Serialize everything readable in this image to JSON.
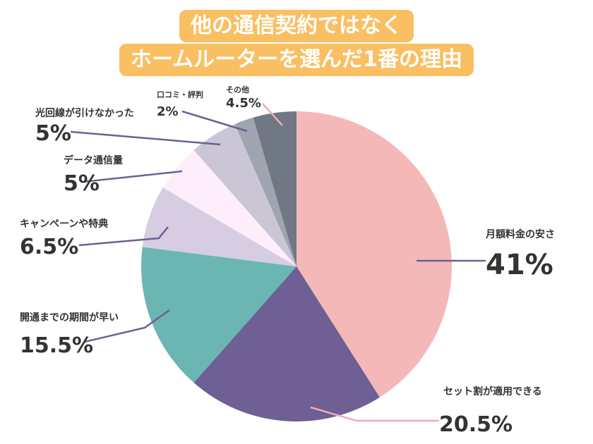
{
  "chart_data": {
    "type": "pie",
    "title_lines": [
      "他の通信契約ではなく",
      "ホームルーターを選んだ1番の理由"
    ],
    "unit": "%",
    "slices": [
      {
        "label": "月額料金の安さ",
        "value": 41,
        "value_text": "41%",
        "color": "#f4b8b8"
      },
      {
        "label": "セット割が適用できる",
        "value": 20.5,
        "value_text": "20.5%",
        "color": "#6e5f94"
      },
      {
        "label": "開通までの期間が早い",
        "value": 15.5,
        "value_text": "15.5%",
        "color": "#6bb6b3"
      },
      {
        "label": "キャンペーンや特典",
        "value": 6.5,
        "value_text": "6.5%",
        "color": "#d7cde2"
      },
      {
        "label": "データ通信量",
        "value": 5,
        "value_text": "5%",
        "color": "#fdeefa"
      },
      {
        "label": "光回線が引けなかった",
        "value": 5,
        "value_text": "5%",
        "color": "#cbc6d6"
      },
      {
        "label": "口コミ・評判",
        "value": 2,
        "value_text": "2%",
        "color": "#a0a4b0"
      },
      {
        "label": "その他",
        "value": 4.5,
        "value_text": "4.5%",
        "color": "#6f7883"
      }
    ],
    "leader_colors": {
      "dark": "#6e5f94",
      "pink": "#f2a9b3"
    }
  }
}
